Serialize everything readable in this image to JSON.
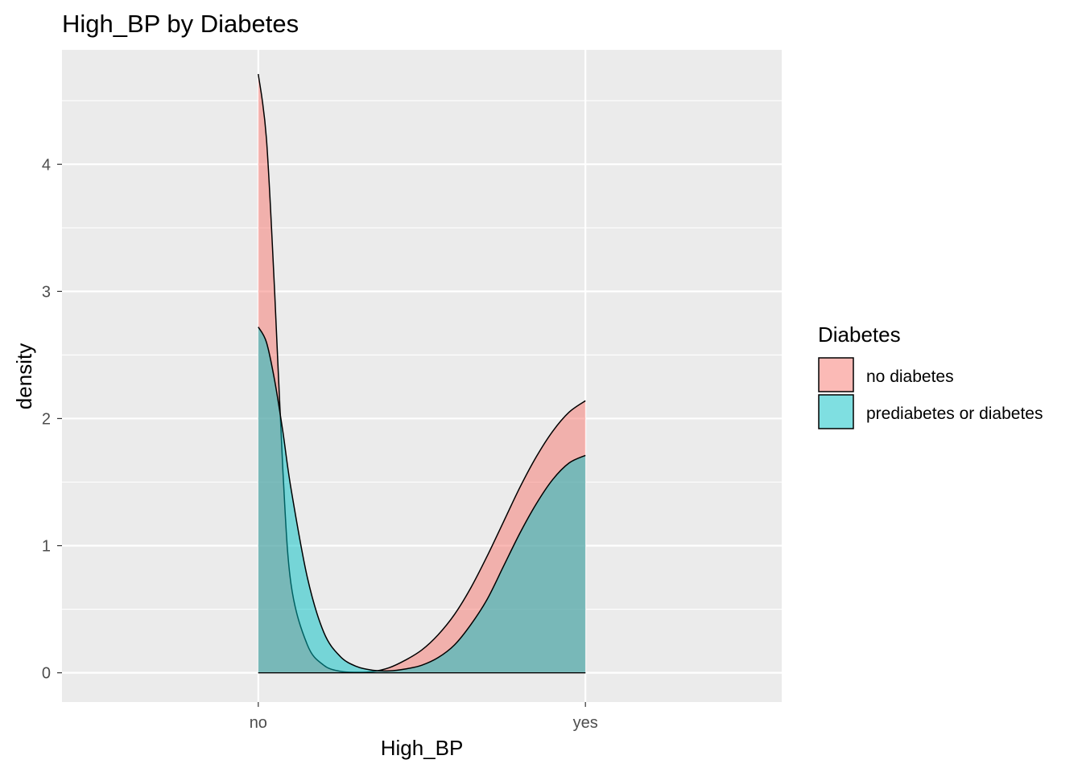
{
  "chart_data": {
    "type": "area",
    "title": "High_BP by Diabetes",
    "xlabel": "High_BP",
    "ylabel": "density",
    "categories": [
      "no",
      "yes"
    ],
    "x_range": [
      -0.6,
      1.6
    ],
    "ylim": [
      -0.23,
      4.9
    ],
    "yticks": [
      0,
      1,
      2,
      3,
      4
    ],
    "grid": true,
    "legend": {
      "title": "Diabetes",
      "placement": "right"
    },
    "series": [
      {
        "name": "no diabetes",
        "color": "#F8766D",
        "x": [
          0,
          0.025,
          0.05,
          0.075,
          0.1,
          0.15,
          0.2,
          0.25,
          0.3,
          0.35,
          0.4,
          0.45,
          0.5,
          0.55,
          0.6,
          0.65,
          0.7,
          0.75,
          0.8,
          0.85,
          0.9,
          0.95,
          1.0
        ],
        "values": [
          4.71,
          4.2,
          3.0,
          1.6,
          0.7,
          0.22,
          0.06,
          0.012,
          0.004,
          0.01,
          0.04,
          0.1,
          0.18,
          0.3,
          0.46,
          0.67,
          0.92,
          1.19,
          1.46,
          1.7,
          1.9,
          2.05,
          2.14
        ]
      },
      {
        "name": "prediabetes or diabetes",
        "color": "#00BFC4",
        "x": [
          0,
          0.025,
          0.05,
          0.075,
          0.1,
          0.15,
          0.2,
          0.25,
          0.3,
          0.35,
          0.4,
          0.45,
          0.5,
          0.55,
          0.6,
          0.65,
          0.7,
          0.75,
          0.8,
          0.85,
          0.9,
          0.95,
          1.0
        ],
        "values": [
          2.72,
          2.6,
          2.3,
          1.9,
          1.45,
          0.75,
          0.32,
          0.13,
          0.05,
          0.02,
          0.015,
          0.03,
          0.06,
          0.12,
          0.22,
          0.38,
          0.58,
          0.84,
          1.1,
          1.33,
          1.52,
          1.65,
          1.71
        ]
      }
    ]
  }
}
